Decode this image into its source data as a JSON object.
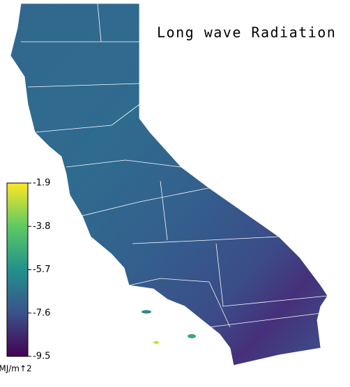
{
  "title": "Long wave Radiation",
  "colorbar": {
    "label": "MJ/m↑2",
    "lim": [
      -9.5,
      -1.9
    ],
    "ticks": [
      -1.9,
      -3.8,
      -5.7,
      -7.6,
      -9.5
    ]
  }
}
